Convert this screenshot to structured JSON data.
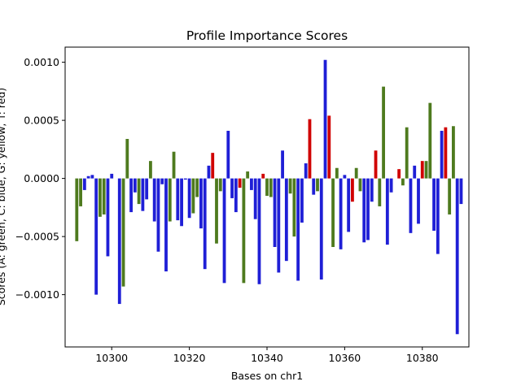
{
  "chart_data": {
    "type": "bar",
    "title": "Profile Importance Scores",
    "xlabel": "Bases on chr1",
    "ylabel": "Scores (A: green, C: blue, G: yellow, T: red)",
    "xlim": [
      10288,
      10392
    ],
    "ylim": [
      -0.00145,
      0.00113
    ],
    "xticks": [
      10300,
      10320,
      10340,
      10360,
      10380
    ],
    "yticks": [
      -0.001,
      -0.0005,
      0.0,
      0.0005,
      0.001
    ],
    "ytick_labels": [
      "−0.0010",
      "−0.0005",
      "0.0000",
      "0.0005",
      "0.0010"
    ],
    "grid": false,
    "colors": {
      "A": "#4e7a1e",
      "C": "#1f1fd6",
      "G": "#c8c800",
      "T": "#d00000"
    },
    "bars": [
      {
        "x": 10291,
        "base": "A",
        "value": -0.00054
      },
      {
        "x": 10292,
        "base": "A",
        "value": -0.00024
      },
      {
        "x": 10293,
        "base": "C",
        "value": -0.0001
      },
      {
        "x": 10294,
        "base": "C",
        "value": 2e-05
      },
      {
        "x": 10295,
        "base": "C",
        "value": 3e-05
      },
      {
        "x": 10296,
        "base": "C",
        "value": -0.001
      },
      {
        "x": 10297,
        "base": "A",
        "value": -0.00033
      },
      {
        "x": 10298,
        "base": "A",
        "value": -0.00031
      },
      {
        "x": 10299,
        "base": "C",
        "value": -0.00067
      },
      {
        "x": 10300,
        "base": "C",
        "value": 4e-05
      },
      {
        "x": 10301,
        "base": "C",
        "value": 0.0
      },
      {
        "x": 10302,
        "base": "C",
        "value": -0.00108
      },
      {
        "x": 10303,
        "base": "A",
        "value": -0.00093
      },
      {
        "x": 10304,
        "base": "A",
        "value": 0.00034
      },
      {
        "x": 10305,
        "base": "C",
        "value": -0.00029
      },
      {
        "x": 10306,
        "base": "C",
        "value": -0.00012
      },
      {
        "x": 10307,
        "base": "A",
        "value": -0.00022
      },
      {
        "x": 10308,
        "base": "C",
        "value": -0.00028
      },
      {
        "x": 10309,
        "base": "C",
        "value": -0.00018
      },
      {
        "x": 10310,
        "base": "A",
        "value": 0.00015
      },
      {
        "x": 10311,
        "base": "C",
        "value": -0.00037
      },
      {
        "x": 10312,
        "base": "C",
        "value": -0.00063
      },
      {
        "x": 10313,
        "base": "C",
        "value": -5e-05
      },
      {
        "x": 10314,
        "base": "C",
        "value": -0.0008
      },
      {
        "x": 10315,
        "base": "A",
        "value": -0.00037
      },
      {
        "x": 10316,
        "base": "A",
        "value": 0.00023
      },
      {
        "x": 10317,
        "base": "C",
        "value": -0.00036
      },
      {
        "x": 10318,
        "base": "C",
        "value": -0.00041
      },
      {
        "x": 10319,
        "base": "C",
        "value": -1e-05
      },
      {
        "x": 10320,
        "base": "C",
        "value": -0.00034
      },
      {
        "x": 10321,
        "base": "A",
        "value": -0.0003
      },
      {
        "x": 10322,
        "base": "A",
        "value": -0.00016
      },
      {
        "x": 10323,
        "base": "C",
        "value": -0.00043
      },
      {
        "x": 10324,
        "base": "C",
        "value": -0.00078
      },
      {
        "x": 10325,
        "base": "C",
        "value": 0.00011
      },
      {
        "x": 10326,
        "base": "T",
        "value": 0.00022
      },
      {
        "x": 10327,
        "base": "A",
        "value": -0.00056
      },
      {
        "x": 10328,
        "base": "A",
        "value": -0.00011
      },
      {
        "x": 10329,
        "base": "C",
        "value": -0.0009
      },
      {
        "x": 10330,
        "base": "C",
        "value": 0.00041
      },
      {
        "x": 10331,
        "base": "C",
        "value": -0.00017
      },
      {
        "x": 10332,
        "base": "C",
        "value": -0.00029
      },
      {
        "x": 10333,
        "base": "T",
        "value": -8e-05
      },
      {
        "x": 10334,
        "base": "A",
        "value": -0.0009
      },
      {
        "x": 10335,
        "base": "A",
        "value": 6e-05
      },
      {
        "x": 10336,
        "base": "C",
        "value": -0.0001
      },
      {
        "x": 10337,
        "base": "C",
        "value": -0.00035
      },
      {
        "x": 10338,
        "base": "C",
        "value": -0.00091
      },
      {
        "x": 10339,
        "base": "T",
        "value": 4e-05
      },
      {
        "x": 10340,
        "base": "A",
        "value": -0.00015
      },
      {
        "x": 10341,
        "base": "A",
        "value": -0.00016
      },
      {
        "x": 10342,
        "base": "C",
        "value": -0.00059
      },
      {
        "x": 10343,
        "base": "C",
        "value": -0.00081
      },
      {
        "x": 10344,
        "base": "C",
        "value": 0.00024
      },
      {
        "x": 10345,
        "base": "C",
        "value": -0.00071
      },
      {
        "x": 10346,
        "base": "A",
        "value": -0.00013
      },
      {
        "x": 10347,
        "base": "A",
        "value": -0.0005
      },
      {
        "x": 10348,
        "base": "C",
        "value": -0.00088
      },
      {
        "x": 10349,
        "base": "C",
        "value": -0.00038
      },
      {
        "x": 10350,
        "base": "C",
        "value": 0.00013
      },
      {
        "x": 10351,
        "base": "T",
        "value": 0.00051
      },
      {
        "x": 10352,
        "base": "C",
        "value": -0.00014
      },
      {
        "x": 10353,
        "base": "A",
        "value": -0.00011
      },
      {
        "x": 10354,
        "base": "C",
        "value": -0.00087
      },
      {
        "x": 10355,
        "base": "C",
        "value": 0.00102
      },
      {
        "x": 10356,
        "base": "T",
        "value": 0.00054
      },
      {
        "x": 10357,
        "base": "A",
        "value": -0.00059
      },
      {
        "x": 10358,
        "base": "A",
        "value": 9e-05
      },
      {
        "x": 10359,
        "base": "C",
        "value": -0.00061
      },
      {
        "x": 10360,
        "base": "C",
        "value": 3e-05
      },
      {
        "x": 10361,
        "base": "C",
        "value": -0.00046
      },
      {
        "x": 10362,
        "base": "T",
        "value": -0.0002
      },
      {
        "x": 10363,
        "base": "A",
        "value": 9e-05
      },
      {
        "x": 10364,
        "base": "A",
        "value": -0.00011
      },
      {
        "x": 10365,
        "base": "C",
        "value": -0.00055
      },
      {
        "x": 10366,
        "base": "C",
        "value": -0.00053
      },
      {
        "x": 10367,
        "base": "C",
        "value": -0.0002
      },
      {
        "x": 10368,
        "base": "T",
        "value": 0.00024
      },
      {
        "x": 10369,
        "base": "A",
        "value": -0.00024
      },
      {
        "x": 10370,
        "base": "A",
        "value": 0.00079
      },
      {
        "x": 10371,
        "base": "C",
        "value": -0.00057
      },
      {
        "x": 10372,
        "base": "C",
        "value": -0.00012
      },
      {
        "x": 10373,
        "base": "C",
        "value": 0.0
      },
      {
        "x": 10374,
        "base": "T",
        "value": 8e-05
      },
      {
        "x": 10375,
        "base": "A",
        "value": -6e-05
      },
      {
        "x": 10376,
        "base": "A",
        "value": 0.00044
      },
      {
        "x": 10377,
        "base": "C",
        "value": -0.00047
      },
      {
        "x": 10378,
        "base": "C",
        "value": 0.00011
      },
      {
        "x": 10379,
        "base": "C",
        "value": -0.00039
      },
      {
        "x": 10380,
        "base": "T",
        "value": 0.00015
      },
      {
        "x": 10381,
        "base": "A",
        "value": 0.00015
      },
      {
        "x": 10382,
        "base": "A",
        "value": 0.00065
      },
      {
        "x": 10383,
        "base": "C",
        "value": -0.00045
      },
      {
        "x": 10384,
        "base": "C",
        "value": -0.00065
      },
      {
        "x": 10385,
        "base": "C",
        "value": 0.00041
      },
      {
        "x": 10386,
        "base": "T",
        "value": 0.00044
      },
      {
        "x": 10387,
        "base": "A",
        "value": -0.00031
      },
      {
        "x": 10388,
        "base": "A",
        "value": 0.00045
      },
      {
        "x": 10389,
        "base": "C",
        "value": -0.00134
      },
      {
        "x": 10390,
        "base": "C",
        "value": -0.00022
      }
    ]
  }
}
